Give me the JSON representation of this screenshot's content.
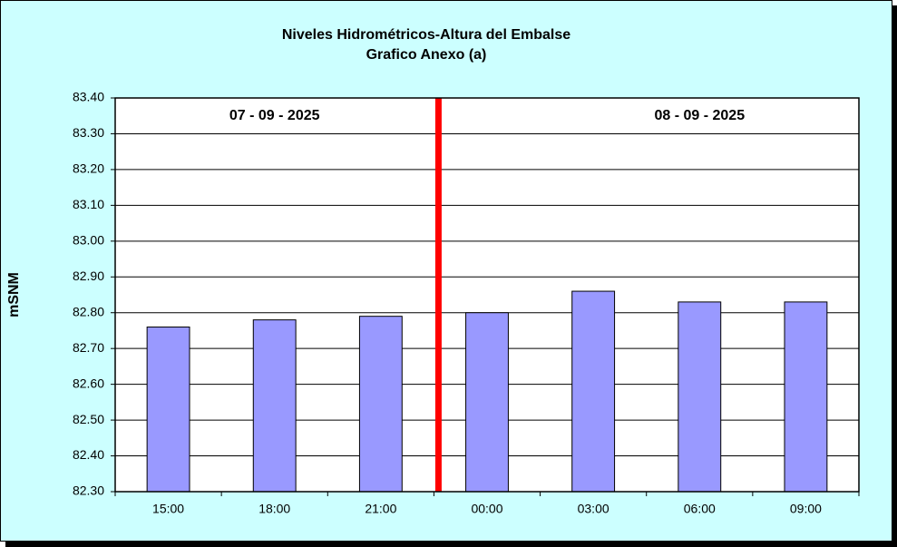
{
  "chart_data": {
    "type": "bar",
    "title": "Niveles Hidrométricos-Altura del Embalse",
    "subtitle": "Grafico Anexo (a)",
    "y_label": "mSNM",
    "annotations": [
      "07 - 09 - 2025",
      "08 - 09 - 2025"
    ],
    "categories": [
      "15:00",
      "18:00",
      "21:00",
      "00:00",
      "03:00",
      "06:00",
      "09:00"
    ],
    "values": [
      82.76,
      82.78,
      82.79,
      82.8,
      82.86,
      82.83,
      82.83
    ],
    "color": "#9999ff",
    "ylim": [
      82.3,
      83.4
    ],
    "yticks": [
      {
        "value": 82.3,
        "label": "82.30"
      },
      {
        "value": 82.4,
        "label": "82.40"
      },
      {
        "value": 82.5,
        "label": "82.50"
      },
      {
        "value": 82.6,
        "label": "82.60"
      },
      {
        "value": 82.7,
        "label": "82.70"
      },
      {
        "value": 82.8,
        "label": "82.80"
      },
      {
        "value": 82.9,
        "label": "82.90"
      },
      {
        "value": 83,
        "label": "83.00"
      },
      {
        "value": 83.1,
        "label": "83.10"
      },
      {
        "value": 83.2,
        "label": "83.20"
      },
      {
        "value": 83.3,
        "label": "83.30"
      },
      {
        "value": 83.4,
        "label": "83.40"
      }
    ],
    "grid": true
  }
}
